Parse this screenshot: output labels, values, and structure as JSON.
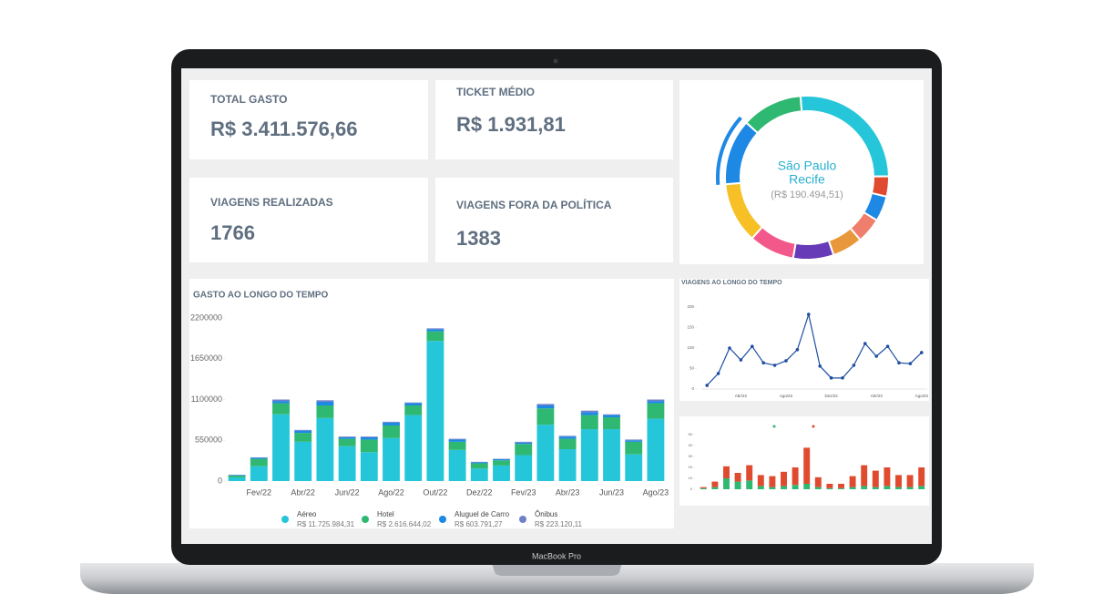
{
  "device_label": "MacBook Pro",
  "kpis": [
    {
      "label": "TOTAL GASTO",
      "value": "R$ 3.411.576,66"
    },
    {
      "label": "TICKET MÉDIO",
      "value": "R$ 1.931,81"
    },
    {
      "label": "VIAGENS REALIZADAS",
      "value": "1766"
    },
    {
      "label": "VIAGENS FORA DA POLÍTICA",
      "value": "1383"
    }
  ],
  "chart_data": [
    {
      "type": "pie",
      "values": [
        26,
        4,
        5,
        5,
        6,
        8,
        9,
        12,
        13,
        12
      ],
      "colors": [
        "#26c6da",
        "#e04a2f",
        "#1e88e5",
        "#ef7f6c",
        "#e8973a",
        "#673ab7",
        "#f2588a",
        "#f6c026",
        "#1e88e5",
        "#2fb872"
      ],
      "highlight": 8,
      "center": [
        "São Paulo",
        "Recife"
      ],
      "center_value": "(R$ 190.494,51)"
    },
    {
      "type": "bar",
      "title": "GASTO AO LONGO DO TEMPO",
      "stacked": true,
      "categories": [
        null,
        "Fev/22",
        null,
        "Abr/22",
        null,
        "Jun/22",
        null,
        "Ago/22",
        null,
        "Out/22",
        null,
        "Dez/22",
        null,
        "Fev/23",
        null,
        "Abr/23",
        null,
        "Jun/23",
        null,
        "Ago/23"
      ],
      "series": [
        {
          "name": "Aéreo",
          "total": "R$ 11.725.984,31",
          "color": "#26c6da",
          "values": [
            50000,
            200000,
            900000,
            530000,
            850000,
            470000,
            390000,
            580000,
            890000,
            1890000,
            420000,
            170000,
            210000,
            350000,
            760000,
            430000,
            700000,
            700000,
            360000,
            840000
          ]
        },
        {
          "name": "Hotel",
          "total": "R$ 2.616.644,02",
          "color": "#2fb872",
          "values": [
            25000,
            100000,
            150000,
            120000,
            170000,
            100000,
            170000,
            170000,
            130000,
            130000,
            110000,
            70000,
            70000,
            150000,
            220000,
            140000,
            190000,
            160000,
            170000,
            210000
          ]
        },
        {
          "name": "Aluguel de Carro",
          "total": "R$ 603.791,27",
          "color": "#1e88e5",
          "values": [
            8000,
            15000,
            30000,
            30000,
            50000,
            20000,
            30000,
            40000,
            30000,
            30000,
            30000,
            15000,
            15000,
            20000,
            40000,
            30000,
            40000,
            30000,
            20000,
            30000
          ]
        },
        {
          "name": "Ônibus",
          "total": "R$ 223.120,11",
          "color": "#6f7fc8",
          "values": [
            3000,
            5000,
            20000,
            10000,
            20000,
            10000,
            10000,
            10000,
            10000,
            10000,
            10000,
            5000,
            5000,
            10000,
            20000,
            10000,
            20000,
            10000,
            10000,
            20000
          ]
        }
      ],
      "ylim": [
        0,
        2200000
      ],
      "yticks": [
        0,
        550000,
        1100000,
        1650000,
        2200000
      ]
    },
    {
      "type": "line",
      "title": "VIAGENS AO LONGO DO TEMPO",
      "categories": [
        null,
        null,
        null,
        "Abr/22",
        null,
        null,
        null,
        "Ago/22",
        null,
        null,
        null,
        "Dez/22",
        null,
        null,
        null,
        "Abr/23",
        null,
        null,
        null,
        "Ago/23"
      ],
      "values": [
        9,
        38,
        100,
        71,
        104,
        64,
        58,
        69,
        96,
        182,
        56,
        27,
        27,
        58,
        111,
        80,
        104,
        64,
        62,
        89
      ],
      "color": "#1f4fa3",
      "ylim": [
        0,
        200
      ],
      "yticks": [
        0,
        50,
        100,
        150,
        200
      ]
    },
    {
      "type": "bar",
      "stacked": true,
      "series": [
        {
          "color": "#2fb872",
          "values": [
            1,
            2,
            10,
            7,
            8,
            3,
            2,
            3,
            4,
            5,
            2,
            1,
            1,
            2,
            3,
            2,
            3,
            2,
            2,
            3
          ]
        },
        {
          "color": "#e04a2f",
          "values": [
            1,
            5,
            11,
            8,
            14,
            10,
            10,
            13,
            16,
            33,
            9,
            4,
            4,
            10,
            19,
            15,
            17,
            11,
            11,
            17
          ]
        }
      ],
      "ylim": [
        0,
        50
      ],
      "yticks": [
        0,
        10,
        20,
        30,
        40,
        50
      ]
    }
  ]
}
